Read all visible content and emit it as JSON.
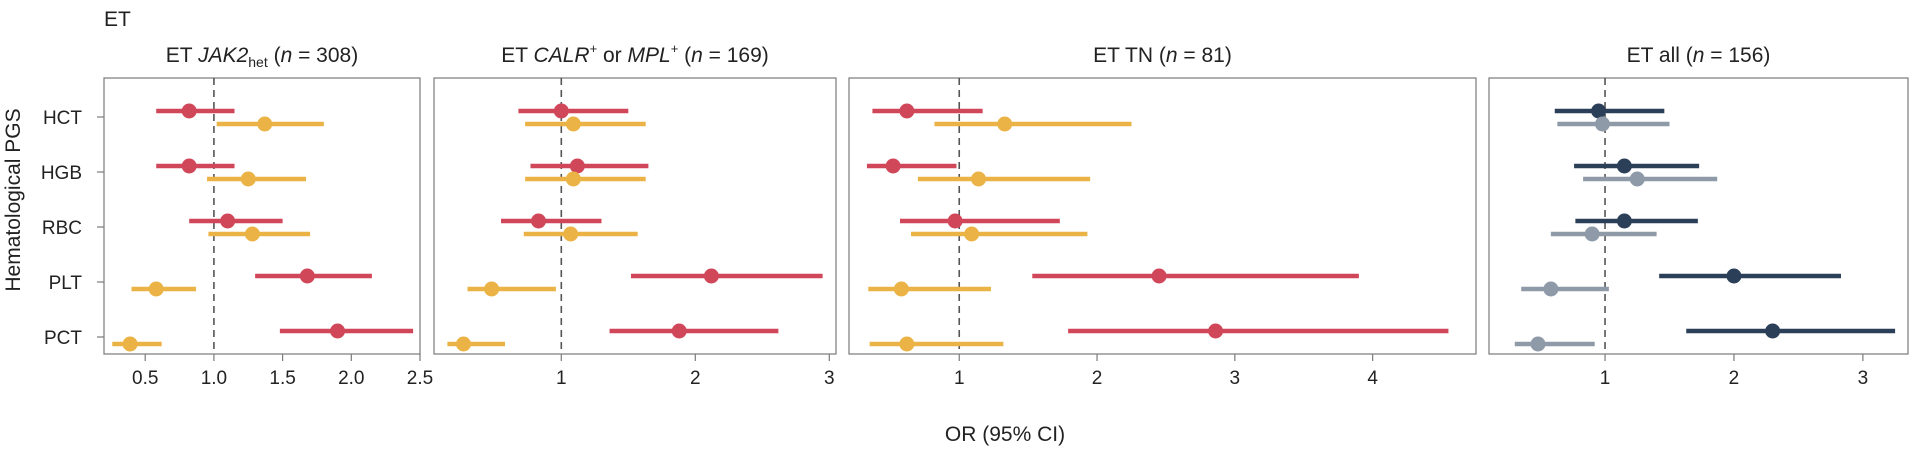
{
  "figure_label": "ET",
  "x_axis_label": "OR (95% CI)",
  "y_axis_label": "Hematological PGS",
  "colors": {
    "red": "#d1475a",
    "yellow": "#ebb345",
    "navy": "#2b3f58",
    "gray": "#8e9aa8",
    "refline": "#555555",
    "frame": "#7a7a7a"
  },
  "chart_data": [
    {
      "type": "forest",
      "title_parts": [
        {
          "text": "ET "
        },
        {
          "text": "JAK2",
          "style": "italic"
        },
        {
          "text": "het",
          "style": "sub"
        },
        {
          "text": " ("
        },
        {
          "text": "n",
          "style": "italic"
        },
        {
          "text": " = 308)"
        }
      ],
      "categories": [
        "HCT",
        "HGB",
        "RBC",
        "PLT",
        "PCT"
      ],
      "xlim": [
        0.2,
        2.5
      ],
      "xticks": [
        0.5,
        1.0,
        1.5,
        2.0,
        2.5
      ],
      "xtick_labels": [
        "0.5",
        "1.0",
        "1.5",
        "2.0",
        "2.5"
      ],
      "reference_x": 1,
      "series": [
        {
          "color": "red",
          "or": [
            0.82,
            0.82,
            1.1,
            1.68,
            1.9
          ],
          "lower": [
            0.58,
            0.58,
            0.82,
            1.3,
            1.48
          ],
          "upper": [
            1.15,
            1.15,
            1.5,
            2.15,
            2.45
          ]
        },
        {
          "color": "yellow",
          "or": [
            1.37,
            1.25,
            1.28,
            0.58,
            0.39
          ],
          "lower": [
            1.02,
            0.95,
            0.96,
            0.4,
            0.26
          ],
          "upper": [
            1.8,
            1.67,
            1.7,
            0.87,
            0.62
          ]
        }
      ]
    },
    {
      "type": "forest",
      "title_parts": [
        {
          "text": "ET "
        },
        {
          "text": "CALR",
          "style": "italic"
        },
        {
          "text": "+",
          "style": "sup"
        },
        {
          "text": " or "
        },
        {
          "text": "MPL",
          "style": "italic"
        },
        {
          "text": "+",
          "style": "sup"
        },
        {
          "text": " ("
        },
        {
          "text": "n",
          "style": "italic"
        },
        {
          "text": " = 169)"
        }
      ],
      "categories": [
        "HCT",
        "HGB",
        "RBC",
        "PLT",
        "PCT"
      ],
      "xlim": [
        0.05,
        3.05
      ],
      "xticks": [
        1,
        2,
        3
      ],
      "xtick_labels": [
        "1",
        "2",
        "3"
      ],
      "reference_x": 1,
      "series": [
        {
          "color": "red",
          "or": [
            1.0,
            1.12,
            0.83,
            2.12,
            1.88
          ],
          "lower": [
            0.68,
            0.77,
            0.55,
            1.52,
            1.36
          ],
          "upper": [
            1.5,
            1.65,
            1.3,
            2.95,
            2.62
          ]
        },
        {
          "color": "yellow",
          "or": [
            1.09,
            1.09,
            1.07,
            0.48,
            0.27
          ],
          "lower": [
            0.73,
            0.73,
            0.72,
            0.3,
            0.15
          ],
          "upper": [
            1.63,
            1.63,
            1.57,
            0.96,
            0.58
          ]
        }
      ]
    },
    {
      "type": "forest",
      "title_parts": [
        {
          "text": "ET TN ("
        },
        {
          "text": "n",
          "style": "italic"
        },
        {
          "text": " = 81)"
        }
      ],
      "categories": [
        "HCT",
        "HGB",
        "RBC",
        "PLT",
        "PCT"
      ],
      "xlim": [
        0.2,
        4.75
      ],
      "xticks": [
        1,
        2,
        3,
        4
      ],
      "xtick_labels": [
        "1",
        "2",
        "3",
        "4"
      ],
      "reference_x": 1,
      "series": [
        {
          "color": "red",
          "or": [
            0.62,
            0.52,
            0.97,
            2.45,
            2.86
          ],
          "lower": [
            0.37,
            0.33,
            0.57,
            1.53,
            1.79
          ],
          "upper": [
            1.17,
            0.98,
            1.73,
            3.9,
            4.55
          ]
        },
        {
          "color": "yellow",
          "or": [
            1.33,
            1.14,
            1.09,
            0.58,
            0.62
          ],
          "lower": [
            0.82,
            0.7,
            0.65,
            0.34,
            0.35
          ],
          "upper": [
            2.25,
            1.95,
            1.93,
            1.23,
            1.32
          ]
        }
      ]
    },
    {
      "type": "forest",
      "title_parts": [
        {
          "text": "ET all ("
        },
        {
          "text": "n",
          "style": "italic"
        },
        {
          "text": " = 156)"
        }
      ],
      "categories": [
        "HCT",
        "HGB",
        "RBC",
        "PLT",
        "PCT"
      ],
      "xlim": [
        0.1,
        3.35
      ],
      "xticks": [
        1,
        2,
        3
      ],
      "xtick_labels": [
        "1",
        "2",
        "3"
      ],
      "reference_x": 1,
      "series": [
        {
          "color": "navy",
          "or": [
            0.95,
            1.15,
            1.15,
            2.0,
            2.3
          ],
          "lower": [
            0.61,
            0.76,
            0.77,
            1.42,
            1.63
          ],
          "upper": [
            1.46,
            1.73,
            1.72,
            2.83,
            3.25
          ]
        },
        {
          "color": "gray",
          "or": [
            0.98,
            1.25,
            0.9,
            0.58,
            0.48
          ],
          "lower": [
            0.63,
            0.83,
            0.58,
            0.35,
            0.3
          ],
          "upper": [
            1.5,
            1.87,
            1.4,
            1.03,
            0.92
          ]
        }
      ]
    }
  ]
}
